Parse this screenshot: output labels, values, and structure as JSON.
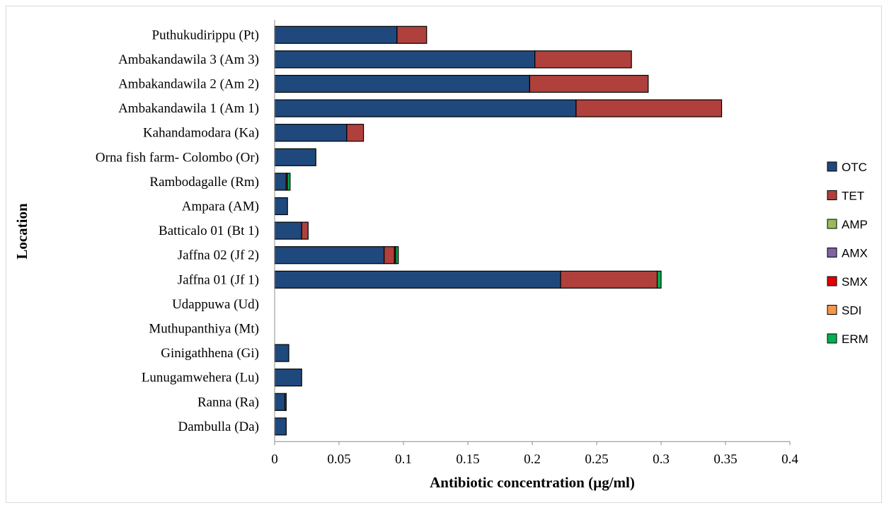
{
  "chart_data": {
    "type": "bar",
    "orientation": "horizontal",
    "stacked": true,
    "xlabel": "Antibiotic concentration (µg/ml)",
    "ylabel": "Location",
    "xlim": [
      0,
      0.4
    ],
    "xticks": [
      "0",
      "0.05",
      "0.1",
      "0.15",
      "0.2",
      "0.25",
      "0.3",
      "0.35",
      "0.4"
    ],
    "grid": false,
    "legend_position": "right",
    "categories": [
      "Puthukudirippu (Pt)",
      "Ambakandawila 3 (Am 3)",
      "Ambakandawila 2 (Am 2)",
      "Ambakandawila 1 (Am 1)",
      "Kahandamodara (Ka)",
      "Orna fish farm- Colombo (Or)",
      "Rambodagalle (Rm)",
      "Ampara (AM)",
      "Batticalo 01 (Bt 1)",
      "Jaffna 02 (Jf 2)",
      "Jaffna 01 (Jf 1)",
      "Udappuwa (Ud)",
      "Muthupanthiya (Mt)",
      "Ginigathhena (Gi)",
      "Lunugamwehera (Lu)",
      "Ranna (Ra)",
      "Dambulla (Da)"
    ],
    "series": [
      {
        "name": "OTC",
        "color": "#1f497d",
        "values": [
          0.095,
          0.202,
          0.198,
          0.234,
          0.056,
          0.032,
          0.009,
          0.01,
          0.021,
          0.085,
          0.222,
          0,
          0,
          0.011,
          0.021,
          0.008,
          0.009
        ]
      },
      {
        "name": "TET",
        "color": "#b0403c",
        "values": [
          0.023,
          0.075,
          0.092,
          0.113,
          0.013,
          0,
          0.001,
          0,
          0.005,
          0.008,
          0.075,
          0,
          0,
          0,
          0,
          0.001,
          0
        ]
      },
      {
        "name": "AMP",
        "color": "#9bbb59",
        "values": [
          0,
          0,
          0,
          0,
          0,
          0,
          0,
          0,
          0,
          0,
          0,
          0,
          0,
          0,
          0,
          0,
          0
        ]
      },
      {
        "name": "AMX",
        "color": "#8064a2",
        "values": [
          0,
          0,
          0,
          0,
          0,
          0,
          0,
          0,
          0,
          0,
          0,
          0,
          0,
          0,
          0,
          0,
          0
        ]
      },
      {
        "name": "SMX",
        "color": "#e00000",
        "values": [
          0,
          0,
          0,
          0,
          0,
          0,
          0,
          0,
          0,
          0.001,
          0,
          0,
          0,
          0,
          0,
          0,
          0
        ]
      },
      {
        "name": "SDI",
        "color": "#f79646",
        "values": [
          0,
          0,
          0,
          0,
          0,
          0,
          0,
          0,
          0,
          0,
          0,
          0,
          0,
          0,
          0,
          0,
          0
        ]
      },
      {
        "name": "ERM",
        "color": "#00b050",
        "values": [
          0,
          0,
          0,
          0,
          0,
          0,
          0.002,
          0,
          0,
          0.002,
          0.003,
          0,
          0,
          0,
          0,
          0,
          0
        ]
      }
    ]
  }
}
